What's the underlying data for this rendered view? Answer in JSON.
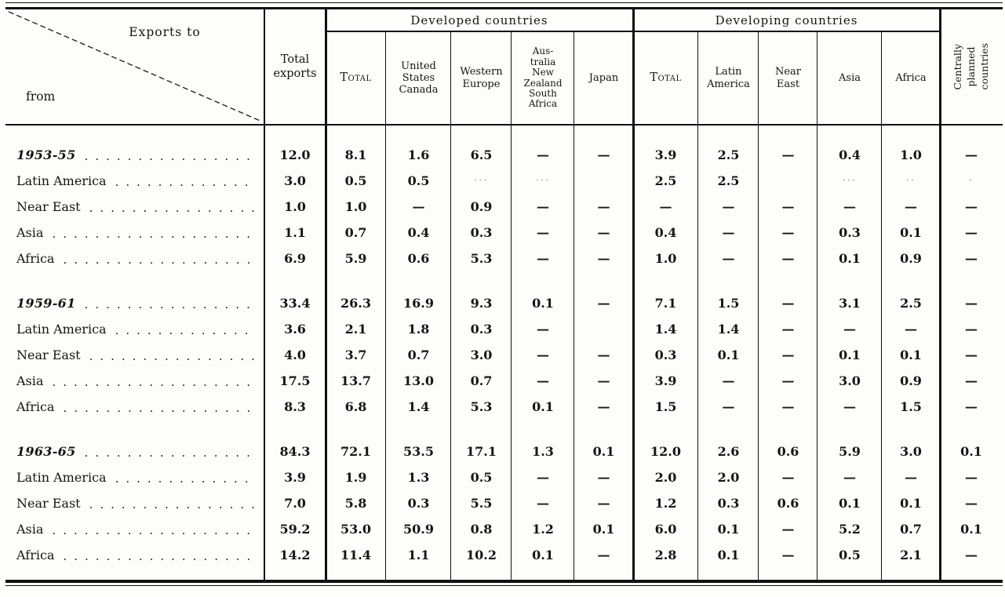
{
  "table": {
    "header": {
      "corner": {
        "exports_to": "Exports to",
        "from": "from"
      },
      "total_exports": "Total\nexports",
      "developed": {
        "title": "Developed countries",
        "subcols": [
          "Total",
          "United\nStates\nCanada",
          "Western\nEurope",
          "Aus-\ntralia\nNew\nZealand\nSouth\nAfrica",
          "Japan"
        ]
      },
      "developing": {
        "title": "Developing countries",
        "subcols": [
          "Total",
          "Latin\nAmerica",
          "Near\nEast",
          "Asia",
          "Africa"
        ]
      },
      "centrally_planned": "Centrally\nplanned\ncountries"
    },
    "column_keys": [
      "total_exports",
      "developed_total",
      "united_states_canada",
      "western_europe",
      "australia_nz_south_africa",
      "japan",
      "developing_total",
      "latin_america",
      "near_east",
      "asia",
      "africa",
      "centrally_planned"
    ],
    "leader_dots": "................................",
    "groups": [
      {
        "rows": [
          {
            "label": "1953-55",
            "period": true,
            "values": [
              "12.0",
              "8.1",
              "1.6",
              "6.5",
              "—",
              "—",
              "3.9",
              "2.5",
              "—",
              "0.4",
              "1.0",
              "—"
            ]
          },
          {
            "label": "Latin America",
            "values": [
              "3.0",
              "0.5",
              "0.5",
              "···",
              "···",
              "",
              "2.5",
              "2.5",
              "",
              "···",
              "··",
              "·"
            ]
          },
          {
            "label": "Near East",
            "values": [
              "1.0",
              "1.0",
              "—",
              "0.9",
              "—",
              "—",
              "—",
              "—",
              "—",
              "—",
              "—",
              "—"
            ]
          },
          {
            "label": "Asia",
            "values": [
              "1.1",
              "0.7",
              "0.4",
              "0.3",
              "—",
              "—",
              "0.4",
              "—",
              "—",
              "0.3",
              "0.1",
              "—"
            ]
          },
          {
            "label": "Africa",
            "values": [
              "6.9",
              "5.9",
              "0.6",
              "5.3",
              "—",
              "—",
              "1.0",
              "—",
              "—",
              "0.1",
              "0.9",
              "—"
            ]
          }
        ]
      },
      {
        "rows": [
          {
            "label": "1959-61",
            "period": true,
            "values": [
              "33.4",
              "26.3",
              "16.9",
              "9.3",
              "0.1",
              "—",
              "7.1",
              "1.5",
              "—",
              "3.1",
              "2.5",
              "—"
            ]
          },
          {
            "label": "Latin America",
            "values": [
              "3.6",
              "2.1",
              "1.8",
              "0.3",
              "—",
              "",
              "1.4",
              "1.4",
              "—",
              "—",
              "—",
              "—"
            ]
          },
          {
            "label": "Near East",
            "values": [
              "4.0",
              "3.7",
              "0.7",
              "3.0",
              "—",
              "—",
              "0.3",
              "0.1",
              "—",
              "0.1",
              "0.1",
              "—"
            ]
          },
          {
            "label": "Asia",
            "values": [
              "17.5",
              "13.7",
              "13.0",
              "0.7",
              "—",
              "—",
              "3.9",
              "—",
              "—",
              "3.0",
              "0.9",
              "—"
            ]
          },
          {
            "label": "Africa",
            "values": [
              "8.3",
              "6.8",
              "1.4",
              "5.3",
              "0.1",
              "—",
              "1.5",
              "—",
              "—",
              "—",
              "1.5",
              "—"
            ]
          }
        ]
      },
      {
        "rows": [
          {
            "label": "1963-65",
            "period": true,
            "values": [
              "84.3",
              "72.1",
              "53.5",
              "17.1",
              "1.3",
              "0.1",
              "12.0",
              "2.6",
              "0.6",
              "5.9",
              "3.0",
              "0.1"
            ]
          },
          {
            "label": "Latin America",
            "values": [
              "3.9",
              "1.9",
              "1.3",
              "0.5",
              "—",
              "—",
              "2.0",
              "2.0",
              "—",
              "—",
              "—",
              "—"
            ]
          },
          {
            "label": "Near East",
            "values": [
              "7.0",
              "5.8",
              "0.3",
              "5.5",
              "—",
              "—",
              "1.2",
              "0.3",
              "0.6",
              "0.1",
              "0.1",
              "—"
            ]
          },
          {
            "label": "Asia",
            "values": [
              "59.2",
              "53.0",
              "50.9",
              "0.8",
              "1.2",
              "0.1",
              "6.0",
              "0.1",
              "—",
              "5.2",
              "0.7",
              "0.1"
            ]
          },
          {
            "label": "Africa",
            "values": [
              "14.2",
              "11.4",
              "1.1",
              "10.2",
              "0.1",
              "—",
              "2.8",
              "0.1",
              "—",
              "0.5",
              "2.1",
              "—"
            ]
          }
        ]
      }
    ]
  }
}
